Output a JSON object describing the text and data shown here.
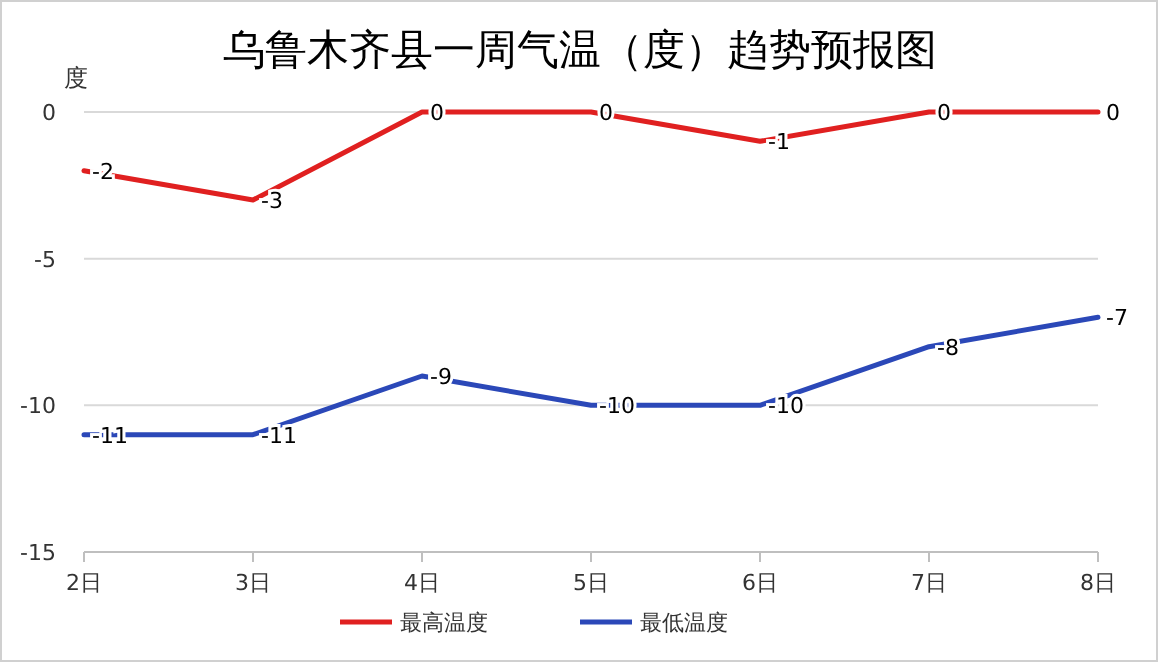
{
  "chart_data": {
    "type": "line",
    "title": "乌鲁木齐县一周气温（度）趋势预报图",
    "ylabel": "度",
    "categories": [
      "2日",
      "3日",
      "4日",
      "5日",
      "6日",
      "7日",
      "8日"
    ],
    "series": [
      {
        "name": "最高温度",
        "color": "#e02020",
        "values": [
          -2,
          -3,
          0,
          0,
          -1,
          0,
          0
        ]
      },
      {
        "name": "最低温度",
        "color": "#2b48b8",
        "values": [
          -11,
          -11,
          -9,
          -10,
          -10,
          -8,
          -7
        ]
      }
    ],
    "ylim": [
      -15,
      0
    ],
    "yticks": [
      0,
      -5,
      -10,
      -15
    ],
    "grid": "y",
    "legend": "bottom",
    "data_labels": true,
    "marker": "none",
    "line_style": "solid"
  }
}
